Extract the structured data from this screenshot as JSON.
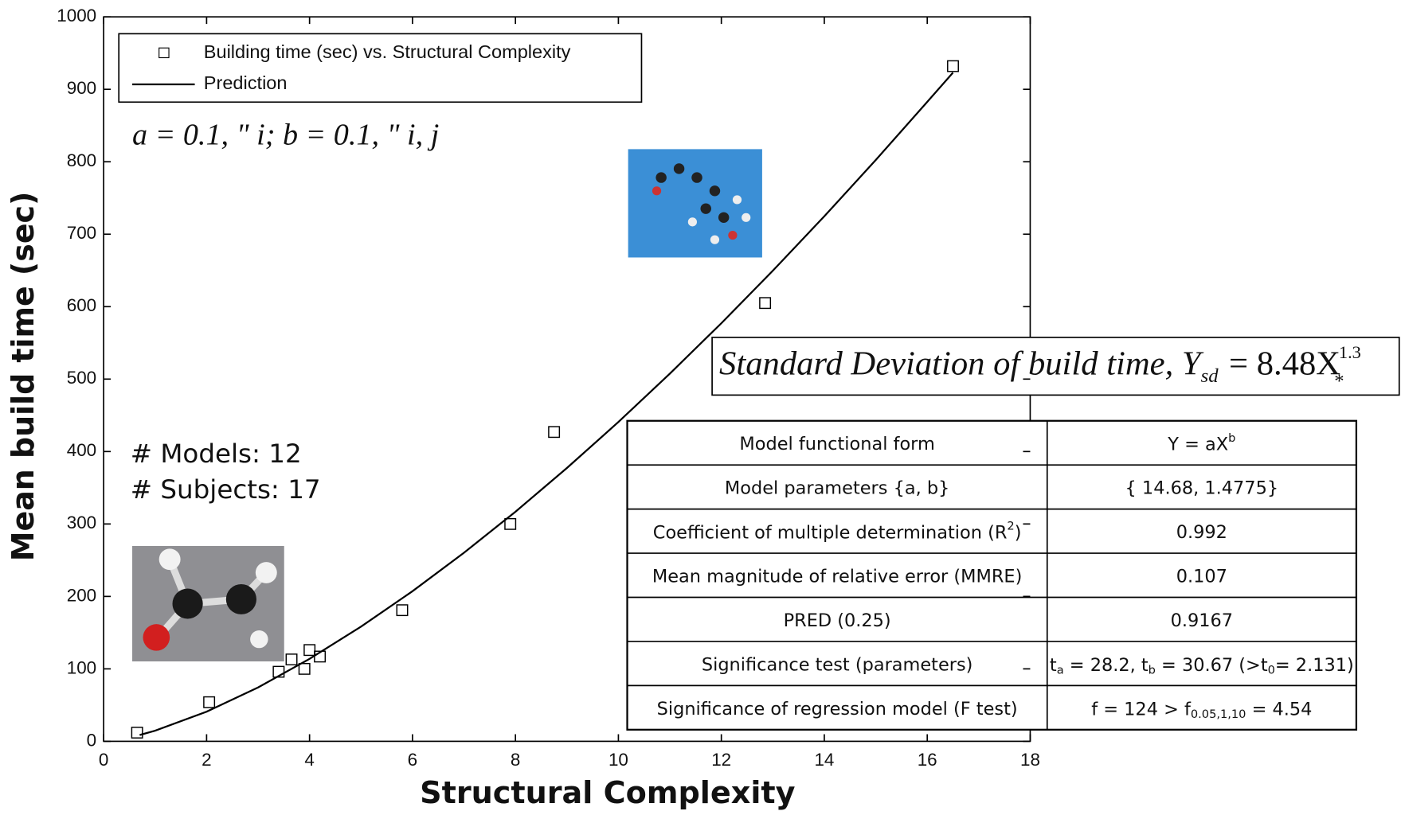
{
  "chart_data": {
    "type": "scatter",
    "xlabel": "Structural Complexity",
    "ylabel": "Mean build time (sec)",
    "xlim": [
      0,
      18
    ],
    "ylim": [
      0,
      1000
    ],
    "xticks": [
      0,
      2,
      4,
      6,
      8,
      10,
      12,
      14,
      16,
      18
    ],
    "yticks": [
      0,
      100,
      200,
      300,
      400,
      500,
      600,
      700,
      800,
      900,
      1000
    ],
    "grid": false,
    "legend": "upper left",
    "series": [
      {
        "name": "Building time (sec) vs. Structural Complexity",
        "type": "scatter",
        "color": "#000000",
        "x": [
          0.65,
          2.05,
          3.4,
          3.65,
          3.9,
          4.0,
          4.2,
          5.8,
          7.9,
          8.75,
          12.85,
          16.5
        ],
        "values": [
          12,
          54,
          96,
          113,
          100,
          126,
          117,
          181,
          300,
          427,
          605,
          932
        ]
      },
      {
        "name": "Prediction",
        "type": "line",
        "color": "#000000",
        "x": [
          0.7,
          1,
          2,
          3,
          4,
          5,
          6,
          7,
          8,
          9,
          10,
          11,
          12,
          13,
          14,
          15,
          16,
          16.5
        ],
        "values": [
          8.7,
          14.7,
          40.9,
          74.4,
          113.8,
          158.3,
          207.2,
          260.3,
          316.9,
          377.3,
          440.8,
          507.5,
          577.1,
          649.6,
          724.7,
          802.4,
          882.7,
          923
        ]
      }
    ],
    "annotations": [
      "a = 0.1, \" i; b = 0.1, \" i, j",
      "# Models: 12",
      "# Subjects: 17"
    ],
    "formula": [
      "Standard Deviation of build time, Y",
      "sd",
      "= 8.48X",
      "*",
      "1.3"
    ],
    "table": {
      "rows": [
        [
          "Model functional form",
          [
            {
              "text": "Y = aX"
            },
            {
              "sup": "b"
            }
          ]
        ],
        [
          "Model parameters {a, b}",
          "{ 14.68, 1.4775}"
        ],
        [
          [
            {
              "text": "Coefficient of multiple determination (R"
            },
            {
              "sup": "2"
            },
            {
              "text": ")"
            }
          ],
          "0.992"
        ],
        [
          "Mean magnitude of relative error (MMRE)",
          "0.107"
        ],
        [
          "PRED (0.25)",
          "0.9167"
        ],
        [
          "Significance test (parameters)",
          [
            {
              "text": "t"
            },
            {
              "sub": "a"
            },
            {
              "text": " = 28.2, t"
            },
            {
              "sub": "b"
            },
            {
              "text": " = 30.67 (>t"
            },
            {
              "sub": "0"
            },
            {
              "text": "= 2.131)"
            }
          ]
        ],
        [
          "Significance of regression model (F test)",
          [
            {
              "text": "f = 124 > f"
            },
            {
              "sub": "0.05,1,10"
            },
            {
              "text": " = 4.54"
            }
          ]
        ]
      ]
    }
  }
}
